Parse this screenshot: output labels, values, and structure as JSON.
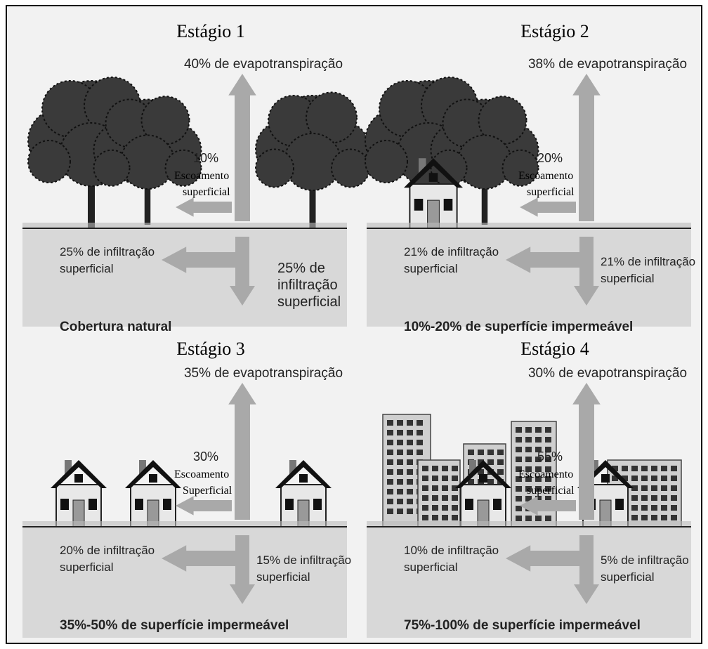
{
  "panels": [
    {
      "title": "Estágio 1",
      "evapotranspiration": "40% de evapotranspiração",
      "runoff_percent": "10%",
      "runoff_label": [
        "Escoamento",
        "superficial"
      ],
      "infiltration_left": [
        "25% de infiltração",
        "superficial"
      ],
      "infiltration_right": [
        "25% de",
        "infiltração",
        "superficial"
      ],
      "caption": "Cobertura natural"
    },
    {
      "title": "Estágio 2",
      "evapotranspiration": "38% de evapotranspiração",
      "runoff_percent": "20%",
      "runoff_label": [
        "Escoamento",
        "superficial"
      ],
      "infiltration_left": [
        "21% de infiltração",
        "superficial"
      ],
      "infiltration_right": [
        "21% de infiltração",
        "superficial"
      ],
      "caption": "10%-20% de superfície impermeável"
    },
    {
      "title": "Estágio 3",
      "evapotranspiration": "35% de evapotranspiração",
      "runoff_percent": "30%",
      "runoff_label": [
        "Escoamento",
        "Superficial"
      ],
      "infiltration_left": [
        "20% de infiltração",
        "superficial"
      ],
      "infiltration_right": [
        "15% de infiltração",
        "superficial"
      ],
      "caption": "35%-50% de superfície impermeável"
    },
    {
      "title": "Estágio 4",
      "evapotranspiration": "30% de evapotranspiração",
      "runoff_percent": "55%",
      "runoff_label": [
        "Escoamento",
        "superficial"
      ],
      "infiltration_left": [
        "10% de infiltração",
        "superficial"
      ],
      "infiltration_right": [
        "5% de infiltração",
        "superficial"
      ],
      "caption": "75%-100% de superfície impermeável"
    }
  ]
}
